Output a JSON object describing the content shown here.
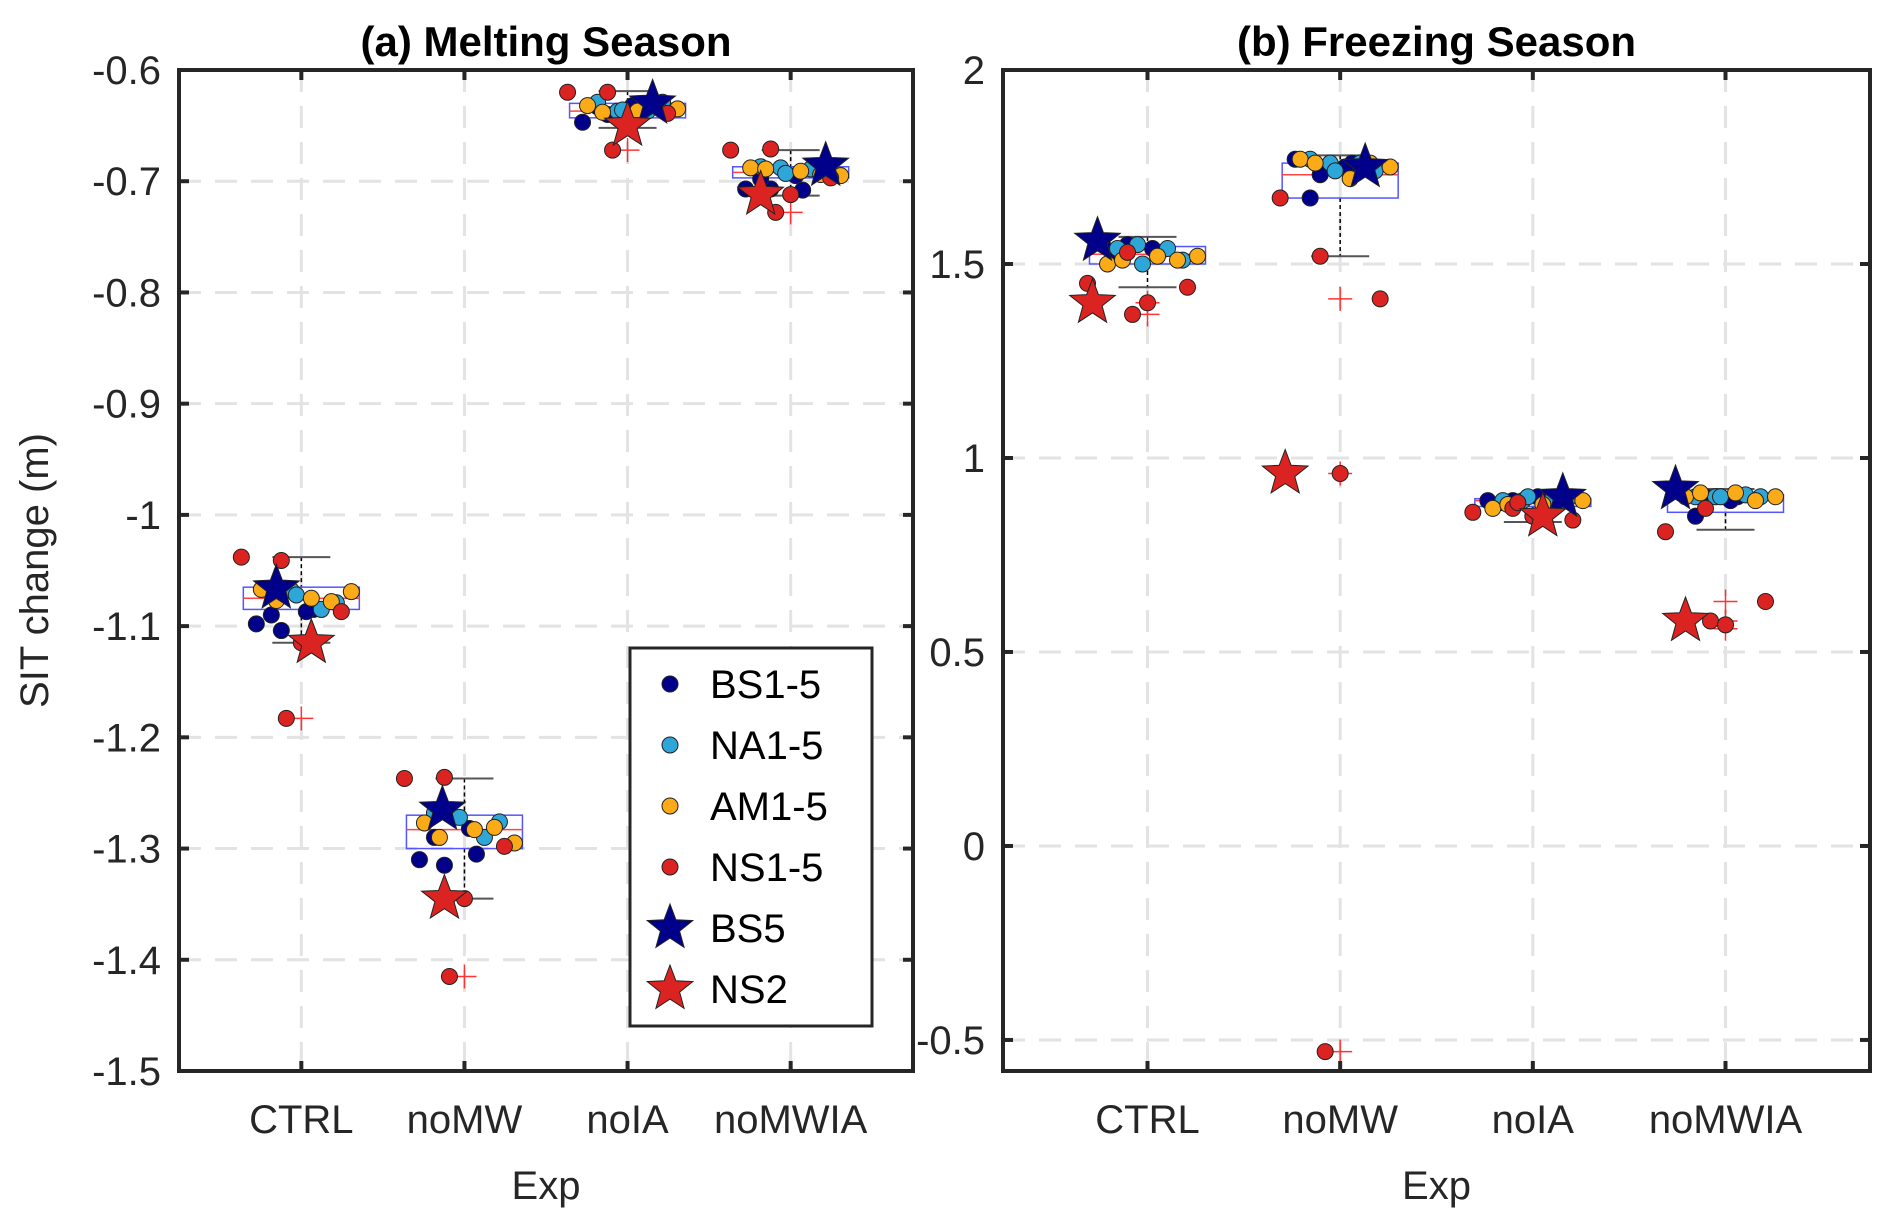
{
  "chart_data": [
    {
      "type": "box",
      "title": "(a) Melting Season",
      "xlabel": "Exp",
      "ylabel": "SIT change (m)",
      "ylim": [
        -1.5,
        -0.6
      ],
      "yticks": [
        -0.6,
        -0.7,
        -0.8,
        -0.9,
        -1,
        -1.1,
        -1.2,
        -1.3,
        -1.4,
        -1.5
      ],
      "ytick_labels": [
        "-0.6",
        "-0.7",
        "-0.8",
        "-0.9",
        "-1",
        "-1.1",
        "-1.2",
        "-1.3",
        "-1.4",
        "-1.5"
      ],
      "categories": [
        "CTRL",
        "noMW",
        "noIA",
        "noMWIA"
      ],
      "grid": true,
      "boxes": [
        {
          "q1": -1.085,
          "median": -1.075,
          "q3": -1.065,
          "whisker_low": -1.115,
          "whisker_high": -1.038,
          "outliers": [
            -1.183
          ]
        },
        {
          "q1": -1.3,
          "median": -1.283,
          "q3": -1.27,
          "whisker_low": -1.345,
          "whisker_high": -1.237,
          "outliers": [
            -1.415
          ]
        },
        {
          "q1": -0.643,
          "median": -0.637,
          "q3": -0.63,
          "whisker_low": -0.652,
          "whisker_high": -0.619,
          "outliers": [
            -0.672
          ]
        },
        {
          "q1": -0.697,
          "median": -0.692,
          "q3": -0.687,
          "whisker_low": -0.713,
          "whisker_high": -0.672,
          "outliers": [
            -0.728
          ]
        }
      ],
      "series": [
        {
          "name": "BS1-5",
          "values": [
            [
              -1.098,
              -1.104,
              -1.085,
              -1.09,
              -1.087
            ],
            [
              -1.31,
              -1.315,
              -1.305,
              -1.29,
              -1.282
            ],
            [
              -0.647,
              -0.64,
              -0.635,
              -0.633,
              -0.632
            ],
            [
              -0.707,
              -0.707,
              -0.708,
              -0.698,
              -0.695
            ]
          ]
        },
        {
          "name": "NA1-5",
          "values": [
            [
              -1.066,
              -1.068,
              -1.085,
              -1.079,
              -1.072
            ],
            [
              -1.268,
              -1.272,
              -1.29,
              -1.276,
              -1.272
            ],
            [
              -0.629,
              -0.637,
              -0.637,
              -0.629,
              -0.636
            ],
            [
              -0.687,
              -0.688,
              -0.689,
              -0.689,
              -0.693
            ]
          ]
        },
        {
          "name": "AM1-5",
          "values": [
            [
              -1.067,
              -1.077,
              -1.075,
              -1.078,
              -1.069
            ],
            [
              -1.277,
              -1.29,
              -1.283,
              -1.281,
              -1.295
            ],
            [
              -0.632,
              -0.638,
              -0.637,
              -0.633,
              -0.635
            ],
            [
              -0.688,
              -0.689,
              -0.691,
              -0.694,
              -0.695
            ]
          ]
        },
        {
          "name": "NS1-5",
          "values": [
            [
              -1.041,
              -1.038,
              -1.087,
              -1.183,
              -1.115
            ],
            [
              -1.236,
              -1.237,
              -1.298,
              -1.415,
              -1.345
            ],
            [
              -0.62,
              -0.62,
              -0.639,
              -0.672,
              -0.65
            ],
            [
              -0.671,
              -0.672,
              -0.697,
              -0.728,
              -0.712
            ]
          ]
        },
        {
          "name": "BS5",
          "values": [
            -1.066,
            -1.265,
            -0.63,
            -0.686
          ]
        },
        {
          "name": "NS2",
          "values": [
            -1.115,
            -1.345,
            -0.65,
            -0.712
          ]
        }
      ],
      "legend": {
        "placement": "bottom-right",
        "entries": [
          "BS1-5",
          "NA1-5",
          "AM1-5",
          "NS1-5",
          "BS5",
          "NS2"
        ]
      }
    },
    {
      "type": "box",
      "title": "(b) Freezing Season",
      "xlabel": "Exp",
      "ylabel": "",
      "ylim": [
        -0.58,
        2
      ],
      "yticks": [
        2,
        1.5,
        1,
        0.5,
        0,
        -0.5
      ],
      "ytick_labels": [
        "2",
        "1.5",
        "1",
        "0.5",
        "0",
        "-0.5"
      ],
      "categories": [
        "CTRL",
        "noMW",
        "noIA",
        "noMWIA"
      ],
      "grid": true,
      "boxes": [
        {
          "q1": 1.5,
          "median": 1.525,
          "q3": 1.545,
          "whisker_low": 1.44,
          "whisker_high": 1.57,
          "outliers": [
            1.4,
            1.37
          ]
        },
        {
          "q1": 1.67,
          "median": 1.73,
          "q3": 1.76,
          "whisker_low": 1.52,
          "whisker_high": 1.78,
          "outliers": [
            1.41,
            0.96,
            -0.53
          ]
        },
        {
          "q1": 0.875,
          "median": 0.89,
          "q3": 0.895,
          "whisker_low": 0.835,
          "whisker_high": 0.9,
          "outliers": []
        },
        {
          "q1": 0.86,
          "median": 0.9,
          "q3": 0.905,
          "whisker_low": 0.815,
          "whisker_high": 0.92,
          "outliers": [
            0.63,
            0.58,
            0.56
          ]
        }
      ],
      "series": [
        {
          "name": "BS1-5",
          "values": [
            [
              1.55,
              1.55,
              1.53,
              1.52,
              1.54
            ],
            [
              1.77,
              1.73,
              1.76,
              1.67,
              1.75
            ],
            [
              0.89,
              0.89,
              0.895,
              0.885,
              0.9
            ],
            [
              0.91,
              0.9,
              0.9,
              0.85,
              0.89
            ]
          ]
        },
        {
          "name": "NA1-5",
          "values": [
            [
              1.54,
              1.55,
              1.54,
              1.51,
              1.5
            ],
            [
              1.77,
              1.76,
              1.76,
              1.74,
              1.74
            ],
            [
              0.89,
              0.89,
              0.895,
              0.895,
              0.9
            ],
            [
              0.9,
              0.9,
              0.905,
              0.9,
              0.9
            ]
          ]
        },
        {
          "name": "AM1-5",
          "values": [
            [
              1.5,
              1.51,
              1.52,
              1.51,
              1.52
            ],
            [
              1.77,
              1.76,
              1.72,
              1.76,
              1.75
            ],
            [
              0.87,
              0.88,
              0.88,
              0.89,
              0.89
            ],
            [
              0.9,
              0.91,
              0.91,
              0.89,
              0.9
            ]
          ]
        },
        {
          "name": "NS1-5",
          "values": [
            [
              1.53,
              1.45,
              1.44,
              1.37,
              1.4
            ],
            [
              1.52,
              1.67,
              1.41,
              -0.53,
              0.96
            ],
            [
              0.87,
              0.86,
              0.84,
              0.885,
              0.85
            ],
            [
              0.87,
              0.81,
              0.63,
              0.58,
              0.57
            ]
          ]
        },
        {
          "name": "BS5",
          "values": [
            1.56,
            1.75,
            0.9,
            0.92
          ]
        },
        {
          "name": "NS2",
          "values": [
            1.4,
            0.96,
            0.85,
            0.58
          ]
        }
      ]
    }
  ],
  "legend": {
    "entries": [
      {
        "label": "BS1-5",
        "marker": "circle",
        "color": "#00008b"
      },
      {
        "label": "NA1-5",
        "marker": "circle",
        "color": "#2ea6d8"
      },
      {
        "label": "AM1-5",
        "marker": "circle",
        "color": "#fbab18"
      },
      {
        "label": "NS1-5",
        "marker": "circle",
        "color": "#db2421"
      },
      {
        "label": "BS5",
        "marker": "star",
        "color": "#00008b"
      },
      {
        "label": "NS2",
        "marker": "star",
        "color": "#db2421"
      }
    ]
  },
  "colors": {
    "box": "#5555ff",
    "median": "#ff4444",
    "whisker": "#555555",
    "outlier": "#ff3333",
    "grid": "#e3e3e3"
  }
}
